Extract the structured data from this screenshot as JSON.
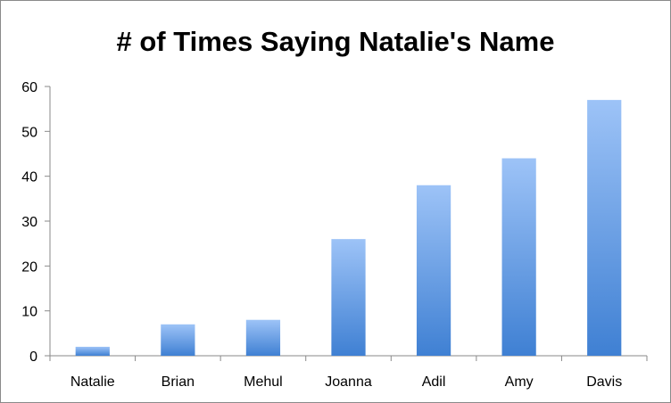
{
  "chart_data": {
    "type": "bar",
    "title": "# of Times Saying Natalie's Name",
    "xlabel": "",
    "ylabel": "",
    "categories": [
      "Natalie",
      "Brian",
      "Mehul",
      "Joanna",
      "Adil",
      "Amy",
      "Davis"
    ],
    "values": [
      2,
      7,
      8,
      26,
      38,
      44,
      57
    ],
    "ylim": [
      0,
      60
    ],
    "yticks": [
      0,
      10,
      20,
      30,
      40,
      50,
      60
    ],
    "grid": false,
    "legend": "none",
    "bar_color_top": "#9dc3f7",
    "bar_color_bottom": "#3f80d3",
    "axis_color": "#8a8a8a"
  }
}
